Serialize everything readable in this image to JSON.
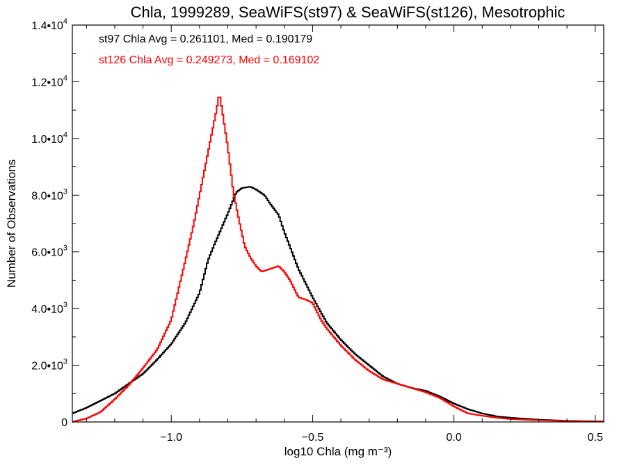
{
  "chart_data": {
    "type": "line",
    "title": "Chla, 1999289, SeaWiFS(st97) & SeaWiFS(st126), Mesotrophic",
    "xlabel": "log10 Chla (mg m⁻³)",
    "ylabel": "Number of Observations",
    "xlim": [
      -1.35,
      0.53
    ],
    "ylim": [
      0,
      14000
    ],
    "xticks": [
      -1.0,
      -0.5,
      0.0,
      0.5
    ],
    "xtick_labels": [
      "−1.0",
      "−0.5",
      "0.0",
      "0.5"
    ],
    "yticks": [
      0,
      2000,
      4000,
      6000,
      8000,
      10000,
      12000,
      14000
    ],
    "ytick_labels": [
      {
        "mant": "0",
        "exp": ""
      },
      {
        "mant": "2.0•10",
        "exp": "3"
      },
      {
        "mant": "4.0•10",
        "exp": "3"
      },
      {
        "mant": "6.0•10",
        "exp": "3"
      },
      {
        "mant": "8.0•10",
        "exp": "3"
      },
      {
        "mant": "1.0•10",
        "exp": "4"
      },
      {
        "mant": "1.2•10",
        "exp": "4"
      },
      {
        "mant": "1.4•10",
        "exp": "4"
      }
    ],
    "annotations": [
      {
        "text": "st97 Chla Avg = 0.261101, Med = 0.190179",
        "color": "#000000"
      },
      {
        "text": "st126 Chla Avg = 0.249273, Med = 0.169102",
        "color": "#ff0000"
      }
    ],
    "series": [
      {
        "color": "#000000",
        "points": [
          [
            -1.35,
            300
          ],
          [
            -1.3,
            500
          ],
          [
            -1.25,
            750
          ],
          [
            -1.2,
            1000
          ],
          [
            -1.15,
            1350
          ],
          [
            -1.1,
            1700
          ],
          [
            -1.05,
            2200
          ],
          [
            -1.0,
            2750
          ],
          [
            -0.95,
            3500
          ],
          [
            -0.9,
            4550
          ],
          [
            -0.87,
            5700
          ],
          [
            -0.85,
            6200
          ],
          [
            -0.8,
            7350
          ],
          [
            -0.77,
            8100
          ],
          [
            -0.75,
            8250
          ],
          [
            -0.72,
            8300
          ],
          [
            -0.7,
            8200
          ],
          [
            -0.67,
            8000
          ],
          [
            -0.65,
            7700
          ],
          [
            -0.62,
            7300
          ],
          [
            -0.6,
            6700
          ],
          [
            -0.55,
            5400
          ],
          [
            -0.5,
            4400
          ],
          [
            -0.45,
            3500
          ],
          [
            -0.4,
            2900
          ],
          [
            -0.35,
            2400
          ],
          [
            -0.3,
            2000
          ],
          [
            -0.25,
            1600
          ],
          [
            -0.2,
            1350
          ],
          [
            -0.15,
            1200
          ],
          [
            -0.1,
            1100
          ],
          [
            -0.05,
            900
          ],
          [
            0.0,
            650
          ],
          [
            0.05,
            450
          ],
          [
            0.1,
            300
          ],
          [
            0.15,
            200
          ],
          [
            0.2,
            150
          ],
          [
            0.3,
            80
          ],
          [
            0.4,
            40
          ],
          [
            0.53,
            20
          ]
        ]
      },
      {
        "color": "#ff0000",
        "points": [
          [
            -1.35,
            0
          ],
          [
            -1.3,
            120
          ],
          [
            -1.25,
            350
          ],
          [
            -1.2,
            800
          ],
          [
            -1.15,
            1300
          ],
          [
            -1.1,
            1900
          ],
          [
            -1.05,
            2550
          ],
          [
            -1.0,
            3600
          ],
          [
            -0.95,
            5700
          ],
          [
            -0.92,
            7000
          ],
          [
            -0.9,
            8000
          ],
          [
            -0.87,
            9500
          ],
          [
            -0.85,
            10500
          ],
          [
            -0.84,
            11000
          ],
          [
            -0.83,
            11600
          ],
          [
            -0.82,
            11000
          ],
          [
            -0.8,
            9700
          ],
          [
            -0.78,
            8100
          ],
          [
            -0.76,
            7100
          ],
          [
            -0.74,
            6200
          ],
          [
            -0.72,
            5800
          ],
          [
            -0.7,
            5500
          ],
          [
            -0.68,
            5300
          ],
          [
            -0.65,
            5400
          ],
          [
            -0.62,
            5500
          ],
          [
            -0.6,
            5300
          ],
          [
            -0.58,
            5000
          ],
          [
            -0.55,
            4400
          ],
          [
            -0.52,
            4300
          ],
          [
            -0.5,
            4200
          ],
          [
            -0.47,
            3600
          ],
          [
            -0.45,
            3300
          ],
          [
            -0.4,
            2700
          ],
          [
            -0.35,
            2200
          ],
          [
            -0.3,
            1800
          ],
          [
            -0.25,
            1500
          ],
          [
            -0.2,
            1350
          ],
          [
            -0.15,
            1200
          ],
          [
            -0.1,
            1050
          ],
          [
            -0.05,
            850
          ],
          [
            0.0,
            550
          ],
          [
            0.05,
            300
          ],
          [
            0.1,
            220
          ],
          [
            0.15,
            150
          ],
          [
            0.2,
            100
          ],
          [
            0.3,
            60
          ],
          [
            0.4,
            30
          ],
          [
            0.53,
            15
          ]
        ]
      }
    ]
  }
}
